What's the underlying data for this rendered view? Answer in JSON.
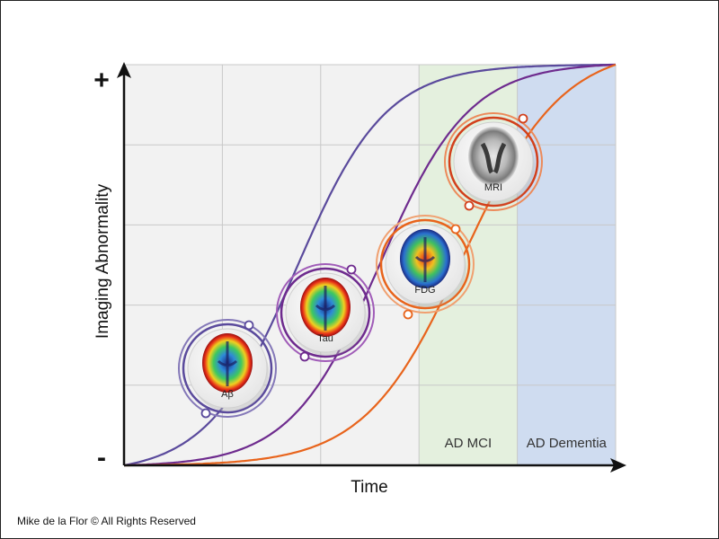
{
  "chart_data": {
    "type": "line",
    "xlabel": "Time",
    "ylabel": "Imaging Abnormality",
    "y_max_label": "+",
    "y_min_label": "-",
    "xlim": [
      0,
      5
    ],
    "ylim": [
      0,
      5
    ],
    "grid": true,
    "regions": [
      {
        "label": "AD MCI",
        "x_start": 3,
        "x_end": 4,
        "color": "#e4f0de"
      },
      {
        "label": "AD Dementia",
        "x_start": 4,
        "x_end": 5,
        "color": "#cfdcf0"
      }
    ],
    "series": [
      {
        "name": "Aβ",
        "color": "#5a4a9c",
        "midpoint": 1.75,
        "steepness": 2.2,
        "points": [
          [
            0,
            0.06
          ],
          [
            0.5,
            0.3
          ],
          [
            1,
            0.8
          ],
          [
            1.5,
            1.8
          ],
          [
            2,
            3.4
          ],
          [
            2.5,
            4.25
          ],
          [
            3,
            4.72
          ],
          [
            3.5,
            4.88
          ],
          [
            4,
            4.95
          ],
          [
            5,
            5.0
          ]
        ]
      },
      {
        "name": "Tau",
        "color": "#6e2b8e",
        "midpoint": 2.6,
        "steepness": 2.2,
        "points": [
          [
            0,
            0.0
          ],
          [
            1,
            0.15
          ],
          [
            1.5,
            0.7
          ],
          [
            2,
            1.6
          ],
          [
            2.5,
            2.9
          ],
          [
            3,
            4.1
          ],
          [
            3.5,
            4.65
          ],
          [
            4,
            4.9
          ],
          [
            5,
            5.0
          ]
        ]
      },
      {
        "name": "FDG",
        "color": "#e8641c",
        "midpoint": 3.45,
        "steepness": 2.0,
        "points": [
          [
            0,
            0.0
          ],
          [
            1,
            0.0
          ],
          [
            2,
            0.45
          ],
          [
            2.5,
            1.05
          ],
          [
            3,
            2.1
          ],
          [
            3.5,
            3.5
          ],
          [
            4,
            4.35
          ],
          [
            4.5,
            4.8
          ],
          [
            5,
            5.0
          ]
        ]
      }
    ],
    "markers": [
      {
        "label": "Aβ",
        "ring": "#5a4a9c",
        "outer": "#8478b8"
      },
      {
        "label": "Tau",
        "ring": "#6e2b8e",
        "outer": "#a05cb8"
      },
      {
        "label": "FDG",
        "ring": "#e8641c",
        "outer": "#f0a070"
      },
      {
        "label": "MRI",
        "ring": "#d2401c",
        "outer": "#ec8a5a"
      }
    ]
  },
  "credit": "Mike de la Flor © All Rights Reserved"
}
